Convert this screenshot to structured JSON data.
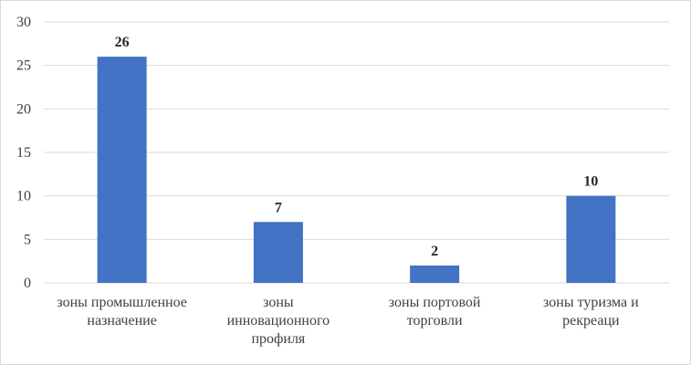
{
  "chart_data": {
    "type": "bar",
    "categories": [
      [
        "зоны промышленное",
        "назначение"
      ],
      [
        "зоны",
        "инновационного",
        "профиля"
      ],
      [
        "зоны портовой",
        "торговли"
      ],
      [
        "зоны туризма и",
        "рекреаци"
      ]
    ],
    "values": [
      26,
      7,
      2,
      10
    ],
    "data_labels": [
      "26",
      "7",
      "2",
      "10"
    ],
    "yticks": [
      "0",
      "5",
      "10",
      "15",
      "20",
      "25",
      "30"
    ],
    "ylim": [
      0,
      30
    ],
    "grid": true,
    "bar_color": "#4472c4",
    "grid_color": "#d9d9d9"
  }
}
